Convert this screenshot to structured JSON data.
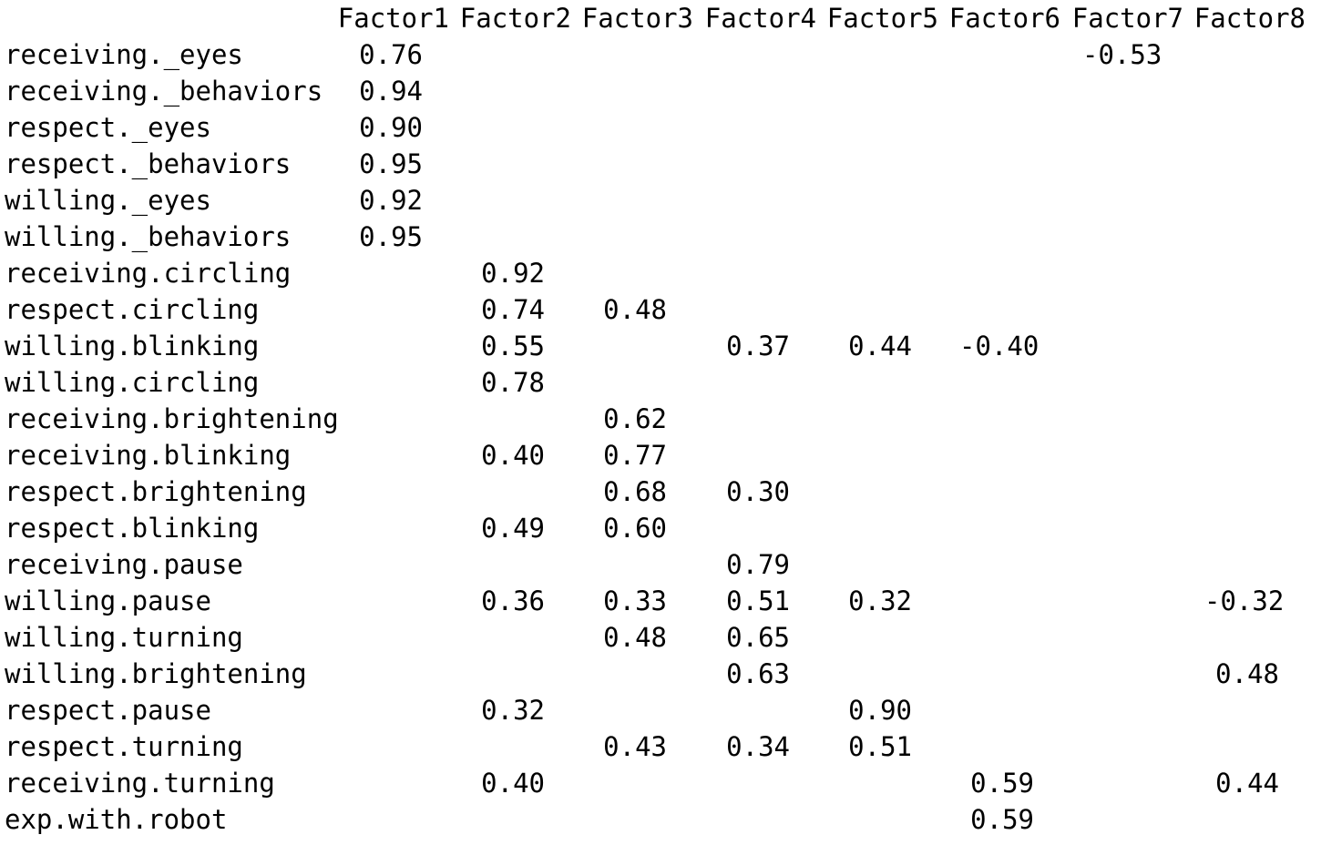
{
  "factors": [
    "Factor1",
    "Factor2",
    "Factor3",
    "Factor4",
    "Factor5",
    "Factor6",
    "Factor7",
    "Factor8"
  ],
  "rows": [
    {
      "label": "receiving._eyes",
      "values": [
        "0.76",
        "",
        "",
        "",
        "",
        "",
        "-0.53",
        ""
      ]
    },
    {
      "label": "receiving._behaviors",
      "values": [
        "0.94",
        "",
        "",
        "",
        "",
        "",
        "",
        ""
      ]
    },
    {
      "label": "respect._eyes",
      "values": [
        "0.90",
        "",
        "",
        "",
        "",
        "",
        "",
        ""
      ]
    },
    {
      "label": "respect._behaviors",
      "values": [
        "0.95",
        "",
        "",
        "",
        "",
        "",
        "",
        ""
      ]
    },
    {
      "label": "willing._eyes",
      "values": [
        "0.92",
        "",
        "",
        "",
        "",
        "",
        "",
        ""
      ]
    },
    {
      "label": "willing._behaviors",
      "values": [
        "0.95",
        "",
        "",
        "",
        "",
        "",
        "",
        ""
      ]
    },
    {
      "label": "receiving.circling",
      "values": [
        "",
        "0.92",
        "",
        "",
        "",
        "",
        "",
        ""
      ]
    },
    {
      "label": "respect.circling",
      "values": [
        "",
        "0.74",
        "0.48",
        "",
        "",
        "",
        "",
        ""
      ]
    },
    {
      "label": "willing.blinking",
      "values": [
        "",
        "0.55",
        "",
        "0.37",
        "0.44",
        "-0.40",
        "",
        ""
      ]
    },
    {
      "label": "willing.circling",
      "values": [
        "",
        "0.78",
        "",
        "",
        "",
        "",
        "",
        ""
      ]
    },
    {
      "label": "receiving.brightening",
      "values": [
        "",
        "",
        "0.62",
        "",
        "",
        "",
        "",
        ""
      ]
    },
    {
      "label": "receiving.blinking",
      "values": [
        "",
        "0.40",
        "0.77",
        "",
        "",
        "",
        "",
        ""
      ]
    },
    {
      "label": "respect.brightening",
      "values": [
        "",
        "",
        "0.68",
        "0.30",
        "",
        "",
        "",
        ""
      ]
    },
    {
      "label": "respect.blinking",
      "values": [
        "",
        "0.49",
        "0.60",
        "",
        "",
        "",
        "",
        ""
      ]
    },
    {
      "label": "receiving.pause",
      "values": [
        "",
        "",
        "",
        "0.79",
        "",
        "",
        "",
        ""
      ]
    },
    {
      "label": "willing.pause",
      "values": [
        "",
        "0.36",
        "0.33",
        "0.51",
        "0.32",
        "",
        "",
        "-0.32"
      ]
    },
    {
      "label": "willing.turning",
      "values": [
        "",
        "",
        "0.48",
        "0.65",
        "",
        "",
        "",
        ""
      ]
    },
    {
      "label": "willing.brightening",
      "values": [
        "",
        "",
        "",
        "0.63",
        "",
        "",
        "",
        "0.48"
      ]
    },
    {
      "label": "respect.pause",
      "values": [
        "",
        "0.32",
        "",
        "",
        "0.90",
        "",
        "",
        ""
      ]
    },
    {
      "label": "respect.turning",
      "values": [
        "",
        "",
        "0.43",
        "0.34",
        "0.51",
        "",
        "",
        ""
      ]
    },
    {
      "label": "receiving.turning",
      "values": [
        "",
        "0.40",
        "",
        "",
        "",
        "0.59",
        "",
        "0.44"
      ]
    },
    {
      "label": "exp.with.robot",
      "values": [
        "",
        "",
        "",
        "",
        "",
        "0.59",
        "",
        ""
      ]
    }
  ]
}
